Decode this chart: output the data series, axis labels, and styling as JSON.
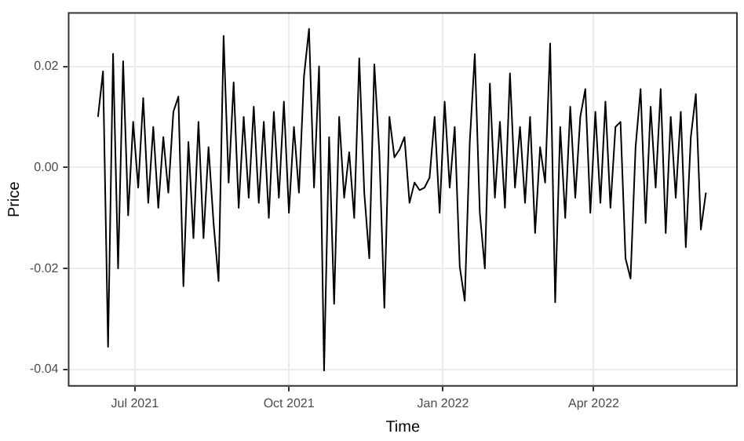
{
  "chart_data": {
    "type": "line",
    "xlabel": "Time",
    "ylabel": "Price",
    "x": [
      "2021-06-09",
      "2021-06-12",
      "2021-06-15",
      "2021-06-18",
      "2021-06-21",
      "2021-06-24",
      "2021-06-27",
      "2021-06-30",
      "2021-07-03",
      "2021-07-06",
      "2021-07-09",
      "2021-07-12",
      "2021-07-15",
      "2021-07-18",
      "2021-07-21",
      "2021-07-24",
      "2021-07-27",
      "2021-07-30",
      "2021-08-02",
      "2021-08-05",
      "2021-08-08",
      "2021-08-11",
      "2021-08-14",
      "2021-08-17",
      "2021-08-20",
      "2021-08-23",
      "2021-08-26",
      "2021-08-29",
      "2021-09-01",
      "2021-09-04",
      "2021-09-07",
      "2021-09-10",
      "2021-09-13",
      "2021-09-16",
      "2021-09-19",
      "2021-09-22",
      "2021-09-25",
      "2021-09-28",
      "2021-10-01",
      "2021-10-04",
      "2021-10-07",
      "2021-10-10",
      "2021-10-13",
      "2021-10-16",
      "2021-10-19",
      "2021-10-22",
      "2021-10-25",
      "2021-10-28",
      "2021-10-31",
      "2021-11-03",
      "2021-11-06",
      "2021-11-09",
      "2021-11-12",
      "2021-11-15",
      "2021-11-18",
      "2021-11-21",
      "2021-11-24",
      "2021-11-27",
      "2021-11-30",
      "2021-12-03",
      "2021-12-06",
      "2021-12-09",
      "2021-12-12",
      "2021-12-15",
      "2021-12-18",
      "2021-12-21",
      "2021-12-24",
      "2021-12-27",
      "2021-12-30",
      "2022-01-02",
      "2022-01-05",
      "2022-01-08",
      "2022-01-11",
      "2022-01-14",
      "2022-01-17",
      "2022-01-20",
      "2022-01-23",
      "2022-01-26",
      "2022-01-29",
      "2022-02-01",
      "2022-02-04",
      "2022-02-07",
      "2022-02-10",
      "2022-02-13",
      "2022-02-16",
      "2022-02-19",
      "2022-02-22",
      "2022-02-25",
      "2022-02-28",
      "2022-03-03",
      "2022-03-06",
      "2022-03-09",
      "2022-03-12",
      "2022-03-15",
      "2022-03-18",
      "2022-03-21",
      "2022-03-24",
      "2022-03-27",
      "2022-03-30",
      "2022-04-02",
      "2022-04-05",
      "2022-04-08",
      "2022-04-11",
      "2022-04-14",
      "2022-04-17",
      "2022-04-20",
      "2022-04-23",
      "2022-04-26",
      "2022-04-29",
      "2022-05-02",
      "2022-05-05",
      "2022-05-08",
      "2022-05-11",
      "2022-05-14",
      "2022-05-17",
      "2022-05-20",
      "2022-05-23",
      "2022-05-26",
      "2022-05-29",
      "2022-06-01",
      "2022-06-04",
      "2022-06-07"
    ],
    "series": [
      {
        "color": "#000000",
        "values": [
          0.01,
          0.019,
          -0.0355,
          0.0225,
          -0.02,
          0.021,
          -0.0095,
          0.009,
          -0.004,
          0.0137,
          -0.007,
          0.008,
          -0.008,
          0.006,
          -0.005,
          0.011,
          0.014,
          -0.0235,
          0.005,
          -0.014,
          0.009,
          -0.014,
          0.004,
          -0.011,
          -0.0225,
          0.026,
          -0.003,
          0.0168,
          -0.008,
          0.01,
          -0.006,
          0.012,
          -0.007,
          0.009,
          -0.01,
          0.011,
          -0.006,
          0.013,
          -0.009,
          0.008,
          -0.005,
          0.018,
          0.0274,
          -0.004,
          0.02,
          -0.0402,
          0.006,
          -0.027,
          0.01,
          -0.006,
          0.003,
          -0.01,
          0.0216,
          -0.005,
          -0.018,
          0.0204,
          0.003,
          -0.0278,
          0.01,
          0.002,
          0.0035,
          0.006,
          -0.007,
          -0.003,
          -0.0045,
          -0.004,
          -0.002,
          0.01,
          -0.009,
          0.013,
          -0.004,
          0.008,
          -0.0196,
          -0.0264,
          0.005,
          0.0224,
          -0.009,
          -0.02,
          0.0166,
          -0.006,
          0.009,
          -0.008,
          0.0186,
          -0.004,
          0.008,
          -0.007,
          0.01,
          -0.013,
          0.004,
          -0.003,
          0.0245,
          -0.0267,
          0.008,
          -0.01,
          0.012,
          -0.006,
          0.01,
          0.0155,
          -0.009,
          0.011,
          -0.007,
          0.013,
          -0.008,
          0.008,
          0.009,
          -0.018,
          -0.022,
          0.004,
          0.0155,
          -0.011,
          0.012,
          -0.004,
          0.0155,
          -0.013,
          0.01,
          -0.006,
          0.011,
          -0.0158,
          0.006,
          0.0145,
          -0.0123,
          -0.005
        ]
      }
    ],
    "xlim": [
      "2021-05-22",
      "2022-06-26"
    ],
    "xticks": [
      {
        "value": "2021-07-01",
        "label": "Jul 2021"
      },
      {
        "value": "2021-10-01",
        "label": "Oct 2021"
      },
      {
        "value": "2022-01-01",
        "label": "Jan 2022"
      },
      {
        "value": "2022-04-01",
        "label": "Apr 2022"
      }
    ],
    "ylim": [
      -0.0434,
      0.0307
    ],
    "yticks": [
      {
        "value": -0.04,
        "label": "-0.04"
      },
      {
        "value": -0.02,
        "label": "-0.02"
      },
      {
        "value": 0,
        "label": "0.00"
      },
      {
        "value": 0.02,
        "label": "0.02"
      }
    ],
    "grid": true,
    "legend": false,
    "marker": "none",
    "line_style": "solid"
  }
}
